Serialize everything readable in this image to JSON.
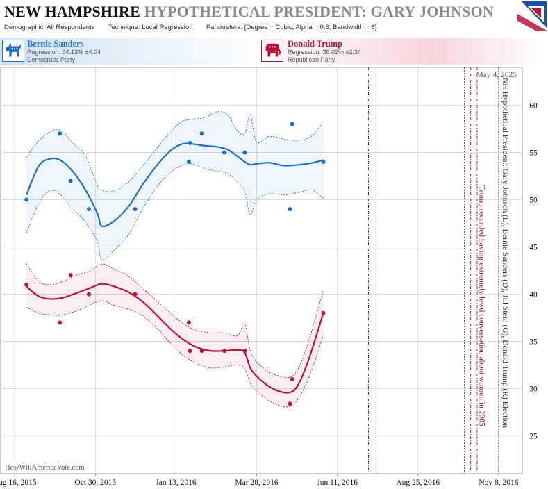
{
  "header": {
    "title_state": "NEW HAMPSHIRE",
    "title_rest": "HYPOTHETICAL PRESIDENT:  GARY JOHNSON",
    "demographic_label": "Demographic:",
    "demographic_value": "All Respondents",
    "technique_label": "Technique:",
    "technique_value": "Local Regression",
    "parameters_label": "Parameters:",
    "parameters_value": "{Degree = Cubic, Alpha = 0.6, Bandwidth = 6}"
  },
  "candidates": {
    "dem": {
      "name": "Bernie Sanders",
      "regression": "Regression: 54.13% ±4.04",
      "party": "Democratic Party",
      "icon": "donkey-icon"
    },
    "rep": {
      "name": "Donald Trump",
      "regression": "Regression: 38.02% ±2.34",
      "party": "Republican Party",
      "icon": "elephant-icon"
    }
  },
  "colors": {
    "dem": "#1a6fd1",
    "rep": "#c0103a",
    "event": "#a0103a",
    "grid": "#dcdcdc"
  },
  "chart_data": {
    "type": "line",
    "date_label": "May 4, 2025",
    "side_label": "NH Hypothetical President: Gary Johnson (L), Bernie Sanders (D), Jill Stein (G), Donald Trump (R) Election",
    "event_label": "Trump recorded having extremely lewd conversation about women in 2005",
    "watermark": "HowWillAmericaVote.com",
    "x_ticks": [
      "2015-08-16",
      "2015-10-30",
      "2016-01-13",
      "2016-03-28",
      "2016-06-11",
      "2016-08-25",
      "2016-11-08"
    ],
    "x_tick_labels": [
      "Aug 16, 2015",
      "Oct 30, 2015",
      "Jan 13, 2016",
      "Mar 28, 2016",
      "Jun 11, 2016",
      "Aug 25, 2016",
      "Nov 8, 2016"
    ],
    "xlim": [
      "2015-08-03",
      "2016-11-30"
    ],
    "y_ticks": [
      25,
      30,
      35,
      40,
      45,
      50,
      55,
      60
    ],
    "ylim": [
      21,
      64
    ],
    "grid": true,
    "markers": [
      {
        "date": "2016-07-10",
        "style": "dashdot"
      },
      {
        "date": "2016-07-17",
        "style": "dotted"
      },
      {
        "date": "2016-10-07",
        "style": "dotted"
      },
      {
        "date": "2016-10-13",
        "style": "dashdot"
      },
      {
        "date": "2016-10-19",
        "style": "dashdot"
      },
      {
        "date": "2016-11-08",
        "style": "dotted"
      }
    ],
    "series": [
      {
        "name": "Bernie Sanders",
        "party": "dem",
        "points": [
          {
            "x": "2015-08-27",
            "y": 50
          },
          {
            "x": "2015-09-27",
            "y": 57
          },
          {
            "x": "2015-10-07",
            "y": 52
          },
          {
            "x": "2015-10-24",
            "y": 49
          },
          {
            "x": "2015-12-06",
            "y": 49
          },
          {
            "x": "2016-01-25",
            "y": 54
          },
          {
            "x": "2016-01-26",
            "y": 56
          },
          {
            "x": "2016-02-06",
            "y": 57
          },
          {
            "x": "2016-02-27",
            "y": 55
          },
          {
            "x": "2016-03-17",
            "y": 55
          },
          {
            "x": "2016-04-28",
            "y": 49
          },
          {
            "x": "2016-04-30",
            "y": 58
          },
          {
            "x": "2016-05-29",
            "y": 54
          }
        ],
        "trend": [
          {
            "x": "2015-08-27",
            "y": 50.5,
            "lo": 46.5,
            "hi": 54.5
          },
          {
            "x": "2015-09-07",
            "y": 53.5,
            "lo": 49.5,
            "hi": 56.2
          },
          {
            "x": "2015-09-17",
            "y": 54.3,
            "lo": 50.9,
            "hi": 57.1
          },
          {
            "x": "2015-09-27",
            "y": 54.2,
            "lo": 50.6,
            "hi": 57.4
          },
          {
            "x": "2015-10-09",
            "y": 53.0,
            "lo": 49.0,
            "hi": 56.0
          },
          {
            "x": "2015-10-21",
            "y": 51.0,
            "lo": 47.6,
            "hi": 54.6
          },
          {
            "x": "2015-11-01",
            "y": 48.5,
            "lo": 45.5,
            "hi": 51.5
          },
          {
            "x": "2015-11-05",
            "y": 47.2,
            "lo": 43.6,
            "hi": 51.0
          },
          {
            "x": "2015-11-16",
            "y": 47.7,
            "lo": 44.6,
            "hi": 50.9
          },
          {
            "x": "2015-11-30",
            "y": 49.3,
            "lo": 46.3,
            "hi": 51.9
          },
          {
            "x": "2015-12-13",
            "y": 51.6,
            "lo": 49.0,
            "hi": 53.6
          },
          {
            "x": "2015-12-26",
            "y": 53.6,
            "lo": 51.3,
            "hi": 55.4
          },
          {
            "x": "2016-01-08",
            "y": 55.2,
            "lo": 52.9,
            "hi": 57.2
          },
          {
            "x": "2016-01-19",
            "y": 55.9,
            "lo": 53.6,
            "hi": 58.3
          },
          {
            "x": "2016-01-28",
            "y": 55.9,
            "lo": 53.8,
            "hi": 58.5
          },
          {
            "x": "2016-02-09",
            "y": 55.7,
            "lo": 53.3,
            "hi": 58.7
          },
          {
            "x": "2016-02-20",
            "y": 55.6,
            "lo": 53.0,
            "hi": 59.3
          },
          {
            "x": "2016-03-01",
            "y": 55.3,
            "lo": 52.8,
            "hi": 59.0
          },
          {
            "x": "2016-03-10",
            "y": 54.6,
            "lo": 51.9,
            "hi": 57.3
          },
          {
            "x": "2016-03-17",
            "y": 54.0,
            "lo": 50.8,
            "hi": 57.0
          },
          {
            "x": "2016-03-22",
            "y": 53.7,
            "lo": 48.4,
            "hi": 59.0
          },
          {
            "x": "2016-03-28",
            "y": 53.8,
            "lo": 50.0,
            "hi": 56.1
          },
          {
            "x": "2016-04-09",
            "y": 53.9,
            "lo": 50.6,
            "hi": 56.7
          },
          {
            "x": "2016-04-23",
            "y": 53.6,
            "lo": 50.5,
            "hi": 56.4
          },
          {
            "x": "2016-05-07",
            "y": 53.7,
            "lo": 50.8,
            "hi": 56.3
          },
          {
            "x": "2016-05-19",
            "y": 53.9,
            "lo": 51.0,
            "hi": 56.8
          },
          {
            "x": "2016-05-29",
            "y": 54.2,
            "lo": 50.1,
            "hi": 58.3
          }
        ]
      },
      {
        "name": "Donald Trump",
        "party": "rep",
        "points": [
          {
            "x": "2015-08-27",
            "y": 41
          },
          {
            "x": "2015-09-27",
            "y": 37
          },
          {
            "x": "2015-10-07",
            "y": 42
          },
          {
            "x": "2015-10-24",
            "y": 40
          },
          {
            "x": "2015-12-06",
            "y": 40
          },
          {
            "x": "2016-01-25",
            "y": 37
          },
          {
            "x": "2016-01-26",
            "y": 34
          },
          {
            "x": "2016-02-06",
            "y": 34
          },
          {
            "x": "2016-02-27",
            "y": 34
          },
          {
            "x": "2016-03-17",
            "y": 34
          },
          {
            "x": "2016-04-28",
            "y": 28.4
          },
          {
            "x": "2016-04-30",
            "y": 31
          },
          {
            "x": "2016-05-29",
            "y": 38
          }
        ],
        "trend": [
          {
            "x": "2015-08-27",
            "y": 40.8,
            "lo": 38.6,
            "hi": 43.2
          },
          {
            "x": "2015-09-07",
            "y": 39.8,
            "lo": 38.0,
            "hi": 41.4
          },
          {
            "x": "2015-09-17",
            "y": 39.5,
            "lo": 37.8,
            "hi": 41.0
          },
          {
            "x": "2015-09-29",
            "y": 39.6,
            "lo": 37.8,
            "hi": 41.3
          },
          {
            "x": "2015-10-12",
            "y": 40.1,
            "lo": 38.2,
            "hi": 42.0
          },
          {
            "x": "2015-10-24",
            "y": 40.6,
            "lo": 38.8,
            "hi": 42.4
          },
          {
            "x": "2015-11-05",
            "y": 41.1,
            "lo": 39.3,
            "hi": 43.2
          },
          {
            "x": "2015-11-17",
            "y": 40.8,
            "lo": 38.8,
            "hi": 42.6
          },
          {
            "x": "2015-11-30",
            "y": 40.2,
            "lo": 38.4,
            "hi": 41.9
          },
          {
            "x": "2015-12-13",
            "y": 39.2,
            "lo": 37.7,
            "hi": 40.6
          },
          {
            "x": "2015-12-26",
            "y": 37.8,
            "lo": 36.4,
            "hi": 39.3
          },
          {
            "x": "2016-01-08",
            "y": 36.3,
            "lo": 34.8,
            "hi": 38.0
          },
          {
            "x": "2016-01-21",
            "y": 35.1,
            "lo": 33.4,
            "hi": 36.8
          },
          {
            "x": "2016-02-01",
            "y": 34.4,
            "lo": 32.7,
            "hi": 36.2
          },
          {
            "x": "2016-02-14",
            "y": 34.0,
            "lo": 32.2,
            "hi": 35.9
          },
          {
            "x": "2016-02-27",
            "y": 34.0,
            "lo": 32.3,
            "hi": 35.9
          },
          {
            "x": "2016-03-10",
            "y": 34.1,
            "lo": 32.5,
            "hi": 35.6
          },
          {
            "x": "2016-03-17",
            "y": 33.8,
            "lo": 32.1,
            "hi": 36.8
          },
          {
            "x": "2016-03-23",
            "y": 32.0,
            "lo": 30.4,
            "hi": 33.7
          },
          {
            "x": "2016-04-04",
            "y": 30.6,
            "lo": 29.1,
            "hi": 32.1
          },
          {
            "x": "2016-04-16",
            "y": 29.8,
            "lo": 28.3,
            "hi": 31.4
          },
          {
            "x": "2016-04-28",
            "y": 29.6,
            "lo": 28.1,
            "hi": 31.2
          },
          {
            "x": "2016-05-06",
            "y": 30.5,
            "lo": 29.0,
            "hi": 32.2
          },
          {
            "x": "2016-05-16",
            "y": 33.3,
            "lo": 31.3,
            "hi": 35.3
          },
          {
            "x": "2016-05-29",
            "y": 38.0,
            "lo": 35.6,
            "hi": 40.4
          }
        ]
      }
    ]
  }
}
